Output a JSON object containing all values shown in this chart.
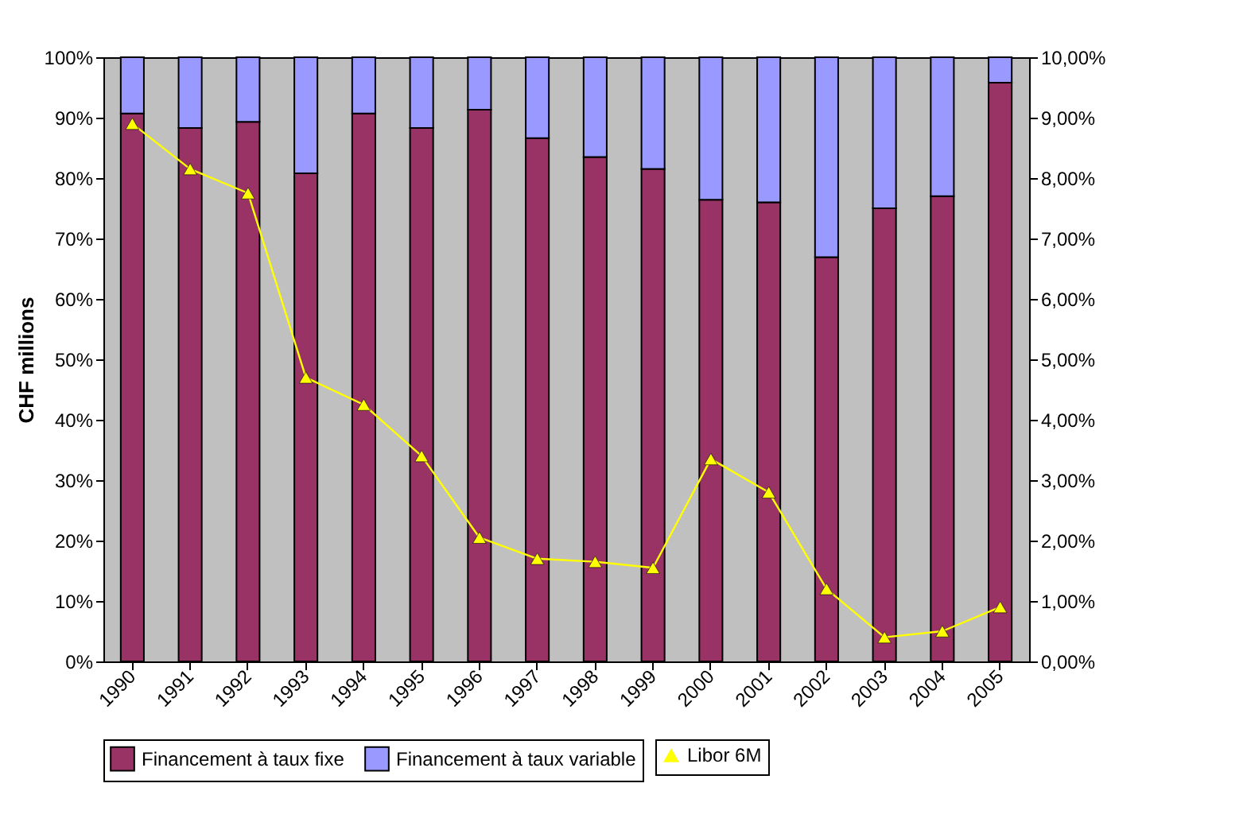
{
  "chart_data": {
    "type": "bar",
    "stacked": true,
    "ylabel": "CHF millions",
    "categories": [
      "1990",
      "1991",
      "1992",
      "1993",
      "1994",
      "1995",
      "1996",
      "1997",
      "1998",
      "1999",
      "2000",
      "2001",
      "2002",
      "2003",
      "2004",
      "2005"
    ],
    "series": [
      {
        "name": "Financement à taux fixe",
        "color": "#993366",
        "values": [
          90.7,
          88.3,
          89.3,
          80.8,
          90.7,
          88.3,
          91.3,
          86.6,
          83.5,
          81.5,
          76.4,
          76.0,
          66.9,
          75.0,
          77.0,
          95.8
        ]
      },
      {
        "name": "Financement à taux variable",
        "color": "#9999ff",
        "values": [
          9.3,
          11.7,
          10.7,
          19.2,
          9.3,
          11.7,
          8.7,
          13.4,
          16.5,
          18.5,
          23.6,
          24.0,
          33.1,
          25.0,
          23.0,
          4.2
        ]
      },
      {
        "name": "Libor 6M",
        "type": "line",
        "axis": "y2",
        "color": "#ffff00",
        "marker": "triangle",
        "values": [
          8.9,
          8.15,
          7.75,
          4.7,
          4.25,
          3.4,
          2.05,
          1.7,
          1.65,
          1.55,
          3.35,
          2.8,
          1.2,
          0.4,
          0.5,
          0.9
        ]
      }
    ],
    "ylim": [
      0,
      100
    ],
    "yticks": [
      {
        "value": 0,
        "label": "0%"
      },
      {
        "value": 10,
        "label": "10%"
      },
      {
        "value": 20,
        "label": "20%"
      },
      {
        "value": 30,
        "label": "30%"
      },
      {
        "value": 40,
        "label": "40%"
      },
      {
        "value": 50,
        "label": "50%"
      },
      {
        "value": 60,
        "label": "60%"
      },
      {
        "value": 70,
        "label": "70%"
      },
      {
        "value": 80,
        "label": "80%"
      },
      {
        "value": 90,
        "label": "90%"
      },
      {
        "value": 100,
        "label": "100%"
      }
    ],
    "y2lim": [
      0,
      10
    ],
    "y2ticks": [
      {
        "value": 0,
        "label": "0,00%"
      },
      {
        "value": 1,
        "label": "1,00%"
      },
      {
        "value": 2,
        "label": "2,00%"
      },
      {
        "value": 3,
        "label": "3,00%"
      },
      {
        "value": 4,
        "label": "4,00%"
      },
      {
        "value": 5,
        "label": "5,00%"
      },
      {
        "value": 6,
        "label": "6,00%"
      },
      {
        "value": 7,
        "label": "7,00%"
      },
      {
        "value": 8,
        "label": "8,00%"
      },
      {
        "value": 9,
        "label": "9,00%"
      },
      {
        "value": 10,
        "label": "10,00%"
      }
    ],
    "grid": false,
    "legend": "bottom"
  }
}
